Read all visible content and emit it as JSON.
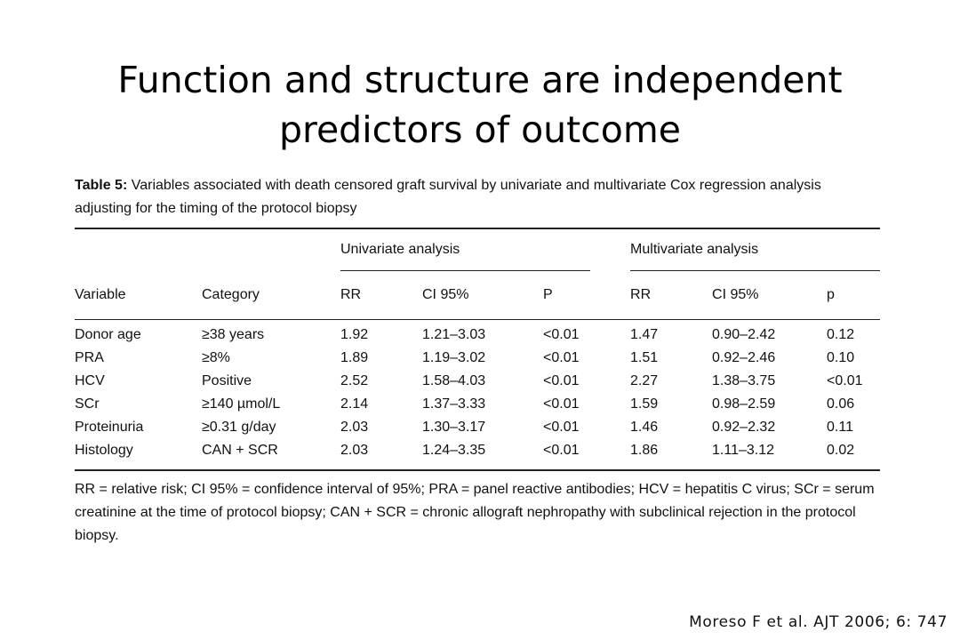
{
  "slide": {
    "title_line1": "Function and structure are independent",
    "title_line2": "predictors of outcome",
    "citation": "Moreso F et al. AJT 2006; 6: 747"
  },
  "table": {
    "caption_label": "Table 5:",
    "caption_text": "Variables associated with death censored graft survival by univariate and multivariate Cox regression analysis adjusting for the timing of the protocol biopsy",
    "group_headers": {
      "univariate": "Univariate analysis",
      "multivariate": "Multivariate analysis"
    },
    "column_headers": [
      "Variable",
      "Category",
      "RR",
      "CI 95%",
      "P",
      "RR",
      "CI 95%",
      "p"
    ],
    "rows": [
      [
        "Donor age",
        "≥38 years",
        "1.92",
        "1.21–3.03",
        "<0.01",
        "1.47",
        "0.90–2.42",
        "0.12"
      ],
      [
        "PRA",
        "≥8%",
        "1.89",
        "1.19–3.02",
        "<0.01",
        "1.51",
        "0.92–2.46",
        "0.10"
      ],
      [
        "HCV",
        "Positive",
        "2.52",
        "1.58–4.03",
        "<0.01",
        "2.27",
        "1.38–3.75",
        "<0.01"
      ],
      [
        "SCr",
        "≥140 µmol/L",
        "2.14",
        "1.37–3.33",
        "<0.01",
        "1.59",
        "0.98–2.59",
        "0.06"
      ],
      [
        "Proteinuria",
        "≥0.31 g/day",
        "2.03",
        "1.30–3.17",
        "<0.01",
        "1.46",
        "0.92–2.32",
        "0.11"
      ],
      [
        "Histology",
        "CAN + SCR",
        "2.03",
        "1.24–3.35",
        "<0.01",
        "1.86",
        "1.11–3.12",
        "0.02"
      ]
    ],
    "footnote": "RR = relative risk; CI 95% = confidence interval of 95%; PRA = panel reactive antibodies; HCV = hepatitis C virus; SCr = serum creatinine at the time of protocol biopsy; CAN + SCR = chronic allograft nephropathy with subclinical rejection in the protocol biopsy."
  }
}
